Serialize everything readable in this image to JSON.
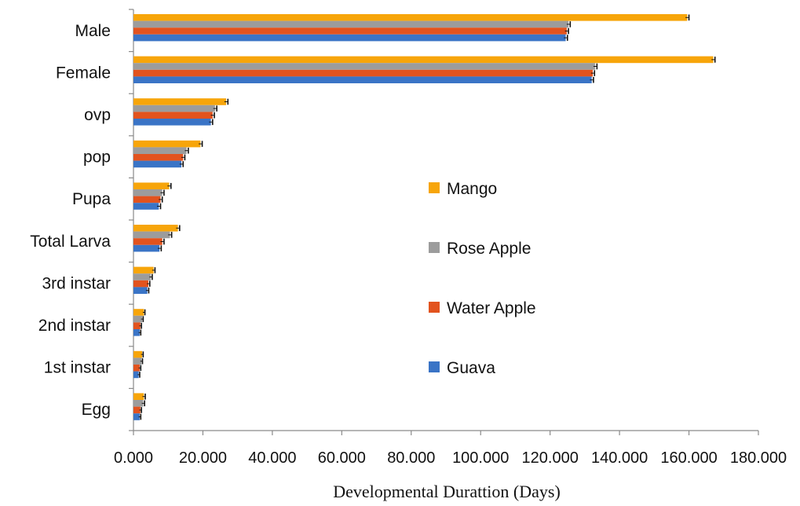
{
  "colors": {
    "Mango": "#F7A50A",
    "Rose Apple": "#9C9C9C",
    "Water Apple": "#E2531E",
    "Guava": "#3A74C6",
    "axis": "#8a8a8a"
  },
  "chart_data": {
    "type": "bar",
    "orientation": "horizontal",
    "title": "",
    "xlabel": "Developmental Durattion (Days)",
    "ylabel": "",
    "xlim": [
      0,
      180
    ],
    "xticks": [
      "0.000",
      "20.000",
      "40.000",
      "60.000",
      "80.000",
      "100.000",
      "120.000",
      "140.000",
      "160.000",
      "180.000"
    ],
    "categories": [
      "Egg",
      "1st instar",
      "2nd instar",
      "3rd instar",
      "Total Larva",
      "Pupa",
      "pop",
      "ovp",
      "Female",
      "Male"
    ],
    "legend_position": "right",
    "error_bars": true,
    "series": [
      {
        "name": "Mango",
        "values": [
          3.0,
          2.5,
          3.0,
          5.8,
          12.8,
          10.3,
          19.3,
          26.7,
          167.0,
          159.5
        ]
      },
      {
        "name": "Rose Apple",
        "values": [
          2.8,
          2.3,
          2.5,
          5.0,
          10.5,
          8.3,
          15.3,
          23.5,
          133.0,
          125.3
        ]
      },
      {
        "name": "Water Apple",
        "values": [
          2.0,
          1.8,
          2.0,
          4.3,
          8.3,
          7.8,
          14.3,
          22.8,
          132.3,
          124.8
        ]
      },
      {
        "name": "Guava",
        "values": [
          1.8,
          1.5,
          1.8,
          4.0,
          7.5,
          7.3,
          13.8,
          22.3,
          132.0,
          124.5
        ]
      }
    ],
    "errors": [
      [
        0.4,
        0.3,
        0.3,
        0.4,
        0.5,
        0.5,
        0.5,
        0.5,
        0.5,
        0.5
      ],
      [
        0.4,
        0.3,
        0.3,
        0.4,
        0.5,
        0.5,
        0.5,
        0.5,
        0.5,
        0.5
      ],
      [
        0.3,
        0.3,
        0.3,
        0.4,
        0.5,
        0.5,
        0.5,
        0.5,
        0.5,
        0.5
      ],
      [
        0.3,
        0.3,
        0.3,
        0.4,
        0.5,
        0.5,
        0.5,
        0.5,
        0.5,
        0.5
      ]
    ]
  }
}
